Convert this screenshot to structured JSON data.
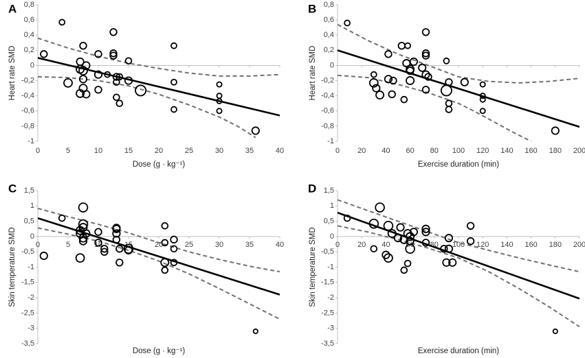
{
  "chart_data": [
    {
      "type": "scatter",
      "label": "A",
      "xlabel": "Dose (g · kg⁻¹)",
      "ylabel": "Heart rate SMD",
      "xlim": [
        0,
        40
      ],
      "xticks": [
        0,
        5,
        10,
        15,
        20,
        25,
        30,
        35,
        40
      ],
      "ylim": [
        -1,
        0.8
      ],
      "yticks": [
        -1,
        {
          "value": -0.8,
          "label": "-0,8"
        },
        {
          "value": -0.6,
          "label": "-0,6"
        },
        {
          "value": -0.4,
          "label": "-0,4"
        },
        {
          "value": -0.2,
          "label": "-0,2"
        },
        0,
        {
          "value": 0.2,
          "label": "0,2"
        },
        {
          "value": 0.4,
          "label": "0,4"
        },
        {
          "value": 0.6,
          "label": "0,6"
        },
        {
          "value": 0.8,
          "label": "0,8"
        }
      ],
      "color": "#000000",
      "ci_color": "#707070",
      "x": [
        1,
        4,
        5,
        7,
        7,
        7,
        7.5,
        7.5,
        7.5,
        7.5,
        8,
        8,
        10,
        10,
        10,
        11.5,
        12.5,
        12.5,
        12.5,
        13,
        13,
        13,
        13.5,
        13.5,
        15,
        15,
        17,
        22.5,
        22.5,
        22.5,
        30,
        30,
        30,
        30,
        36
      ],
      "values": [
        0.15,
        0.57,
        -0.23,
        -0.37,
        0.05,
        -0.05,
        -0.07,
        0.26,
        -0.18,
        -0.3,
        -0.38,
        0,
        0.15,
        -0.12,
        -0.32,
        -0.12,
        0.44,
        0.16,
        0.13,
        -0.15,
        -0.22,
        -0.42,
        -0.5,
        -0.15,
        0.06,
        -0.2,
        -0.33,
        0.26,
        -0.22,
        -0.58,
        -0.25,
        -0.4,
        -0.47,
        -0.6,
        -0.86
      ],
      "sizes": [
        1.2,
        1,
        1.5,
        1.4,
        1.3,
        1.4,
        1.5,
        1.2,
        1.3,
        1.4,
        1.3,
        1.3,
        1.2,
        1.3,
        1.2,
        1,
        1.2,
        1.2,
        1.2,
        1.2,
        1.1,
        1.1,
        1.1,
        1.1,
        1.1,
        1.3,
        1.9,
        1,
        1,
        1,
        0.9,
        0.9,
        0.9,
        0.9,
        1.3
      ],
      "fit": {
        "x": [
          0,
          40
        ],
        "y": [
          0.1,
          -0.66
        ]
      },
      "ci_upper": {
        "x": [
          0,
          5,
          10,
          15,
          20,
          25,
          30,
          35,
          40
        ],
        "y": [
          0.36,
          0.23,
          0.12,
          0.03,
          -0.04,
          -0.1,
          -0.14,
          -0.14,
          -0.12
        ]
      },
      "ci_lower": {
        "x": [
          0,
          5,
          10,
          15,
          20,
          25,
          30,
          33,
          36
        ],
        "y": [
          -0.15,
          -0.16,
          -0.2,
          -0.27,
          -0.38,
          -0.52,
          -0.68,
          -0.8,
          -0.95
        ]
      }
    },
    {
      "type": "scatter",
      "label": "B",
      "xlabel": "Exercise duration (min)",
      "ylabel": "Heart rate SMD",
      "xlim": [
        0,
        200
      ],
      "xticks": [
        0,
        20,
        40,
        60,
        80,
        100,
        120,
        140,
        160,
        180,
        200
      ],
      "ylim": [
        -1,
        0.8
      ],
      "yticks": [
        -1,
        {
          "value": -0.8,
          "label": "-0,8"
        },
        {
          "value": -0.6,
          "label": "-0,6"
        },
        {
          "value": -0.4,
          "label": "-0,4"
        },
        {
          "value": -0.2,
          "label": "-0,2"
        },
        0,
        {
          "value": 0.2,
          "label": "0,2"
        },
        {
          "value": 0.4,
          "label": "0,4"
        },
        {
          "value": 0.6,
          "label": "0,6"
        },
        {
          "value": 0.8,
          "label": "0,8"
        }
      ],
      "color": "#000000",
      "ci_color": "#707070",
      "x": [
        8,
        30,
        30,
        32,
        35,
        42,
        42,
        46,
        45,
        53,
        55,
        57,
        58,
        60,
        60,
        60,
        63,
        70,
        73,
        73,
        73,
        73,
        73,
        75,
        90,
        90,
        92,
        92,
        92,
        105,
        120,
        120,
        120,
        120,
        180
      ],
      "values": [
        0.56,
        -0.12,
        -0.23,
        -0.3,
        -0.39,
        0.15,
        -0.18,
        -0.2,
        -0.38,
        0.26,
        -0.45,
        0.03,
        0.26,
        -0.05,
        -0.07,
        -0.2,
        0.05,
        -0.03,
        0.44,
        0.16,
        0.13,
        -0.12,
        -0.32,
        -0.15,
        0.06,
        -0.33,
        -0.22,
        -0.5,
        -0.58,
        -0.22,
        -0.25,
        -0.4,
        -0.45,
        -0.6,
        -0.86
      ],
      "sizes": [
        1,
        1,
        1.5,
        1.3,
        1.4,
        1.2,
        1.3,
        1.2,
        1.2,
        1.2,
        1.1,
        1.3,
        1,
        1.4,
        1.3,
        1.4,
        1.3,
        1.3,
        1.2,
        1.2,
        1.2,
        1.3,
        1.2,
        1.2,
        1,
        1.9,
        1.2,
        1.1,
        1.1,
        1.3,
        0.9,
        0.9,
        0.9,
        0.9,
        1.3
      ],
      "fit": {
        "x": [
          0,
          200
        ],
        "y": [
          0.2,
          -0.81
        ]
      },
      "ci_upper": {
        "x": [
          0,
          25,
          50,
          75,
          100,
          125,
          150,
          175,
          200
        ],
        "y": [
          0.54,
          0.33,
          0.15,
          0.0,
          -0.15,
          -0.21,
          -0.23,
          -0.21,
          -0.17
        ]
      },
      "ci_lower": {
        "x": [
          0,
          25,
          50,
          75,
          100,
          115,
          130,
          145,
          160
        ],
        "y": [
          -0.13,
          -0.16,
          -0.25,
          -0.36,
          -0.5,
          -0.62,
          -0.75,
          -0.88,
          -1.0
        ]
      }
    },
    {
      "type": "scatter",
      "label": "C",
      "xlabel": "Dose (g · kg⁻¹)",
      "ylabel": "Skin temperature SMD",
      "xlim": [
        0,
        40
      ],
      "xticks": [
        0,
        5,
        10,
        15,
        20,
        25,
        30,
        35,
        40
      ],
      "ylim": [
        -3.5,
        1.5
      ],
      "yticks": [
        {
          "value": -3.5,
          "label": "-3,5"
        },
        -3,
        {
          "value": -2.5,
          "label": "-2,5"
        },
        -2,
        {
          "value": -1.5,
          "label": "-1,5"
        },
        -1,
        {
          "value": -0.5,
          "label": "-0,5"
        },
        0,
        {
          "value": 0.5,
          "label": "0,5"
        },
        1,
        {
          "value": 1.5,
          "label": "1,5"
        }
      ],
      "color": "#000000",
      "ci_color": "#707070",
      "x": [
        1,
        4,
        7,
        7,
        7,
        7.5,
        7.5,
        7.5,
        7.5,
        7.5,
        8,
        10,
        10,
        11,
        11,
        13,
        13,
        13,
        13,
        13.5,
        13.5,
        15,
        15,
        21,
        21,
        21,
        21,
        22.5,
        22.5,
        22.5,
        36
      ],
      "values": [
        -0.63,
        0.6,
        -0.7,
        0.2,
        0.1,
        0.95,
        0.4,
        0.3,
        -0.05,
        -0.15,
        0.1,
        0.15,
        -0.2,
        -0.4,
        -0.5,
        0.28,
        0.25,
        0.1,
        -0.1,
        -0.4,
        -0.85,
        -0.4,
        -0.45,
        0.35,
        -0.2,
        -0.85,
        -1.1,
        -0.1,
        -0.4,
        -0.85,
        -3.1
      ],
      "sizes": [
        1.3,
        1.1,
        1.5,
        1.4,
        1.4,
        1.6,
        1.6,
        1.4,
        1.4,
        1.3,
        1.3,
        1.2,
        1.2,
        1.2,
        1.2,
        1.3,
        1.3,
        1.3,
        1.2,
        1.2,
        1.2,
        1.6,
        1.3,
        1.1,
        1.1,
        1.4,
        1.1,
        1.2,
        1.1,
        1.1,
        0.8
      ],
      "fit": {
        "x": [
          0,
          40
        ],
        "y": [
          0.6,
          -1.9
        ]
      },
      "ci_upper": {
        "x": [
          0,
          5,
          10,
          15,
          20,
          25,
          30,
          35,
          40
        ],
        "y": [
          0.92,
          0.65,
          0.4,
          0.12,
          -0.2,
          -0.5,
          -0.75,
          -0.97,
          -1.15
        ]
      },
      "ci_lower": {
        "x": [
          0,
          5,
          10,
          15,
          20,
          25,
          30,
          35,
          40
        ],
        "y": [
          0.28,
          0.08,
          -0.15,
          -0.45,
          -0.8,
          -1.22,
          -1.7,
          -2.2,
          -2.7
        ]
      }
    },
    {
      "type": "scatter",
      "label": "D",
      "xlabel": "Exercise duration (min)",
      "ylabel": "Skin temperature SMD",
      "xlim": [
        0,
        200
      ],
      "xticks": [
        0,
        20,
        40,
        60,
        80,
        100,
        120,
        140,
        160,
        180,
        200
      ],
      "ylim": [
        -3.5,
        1.5
      ],
      "yticks": [
        {
          "value": -3.5,
          "label": "-3,5"
        },
        -3,
        {
          "value": -2.5,
          "label": "-2,5"
        },
        -2,
        {
          "value": -1.5,
          "label": "-1,5"
        },
        -1,
        {
          "value": -0.5,
          "label": "-0,5"
        },
        0,
        {
          "value": 0.5,
          "label": "0,5"
        },
        1,
        {
          "value": 1.5,
          "label": "1,5"
        }
      ],
      "color": "#000000",
      "ci_color": "#707070",
      "x": [
        8,
        30,
        30,
        35,
        40,
        42,
        42,
        45,
        50,
        52,
        55,
        55,
        58,
        58,
        60,
        60,
        60,
        63,
        73,
        73,
        73,
        88,
        90,
        92,
        92,
        95,
        110,
        110,
        180
      ],
      "values": [
        0.6,
        -0.4,
        0.42,
        0.95,
        -0.6,
        -0.7,
        0.35,
        0.1,
        -0.05,
        0.3,
        -0.1,
        -1.1,
        -0.88,
        0.1,
        0.0,
        -0.4,
        -0.15,
        0.15,
        0.25,
        0.15,
        -0.2,
        -0.4,
        -0.85,
        -0.05,
        -0.4,
        -0.85,
        0.35,
        -0.15,
        -3.1
      ],
      "sizes": [
        1.1,
        1.1,
        1.6,
        1.6,
        1.3,
        1.5,
        1.6,
        1.4,
        1.3,
        1.3,
        1.4,
        1.1,
        1.1,
        1.4,
        1.4,
        1.6,
        1.3,
        1.3,
        1.3,
        1.3,
        1.2,
        1.2,
        1.3,
        1.3,
        1.3,
        1.3,
        1.2,
        1.2,
        0.8
      ],
      "fit": {
        "x": [
          0,
          200
        ],
        "y": [
          0.78,
          -2.03
        ]
      },
      "ci_upper": {
        "x": [
          0,
          25,
          50,
          75,
          100,
          125,
          150,
          175,
          200
        ],
        "y": [
          1.2,
          0.85,
          0.5,
          0.15,
          -0.2,
          -0.45,
          -0.7,
          -0.93,
          -1.15
        ]
      },
      "ci_lower": {
        "x": [
          0,
          25,
          50,
          75,
          100,
          125,
          150,
          175,
          200
        ],
        "y": [
          0.35,
          0.15,
          -0.1,
          -0.38,
          -0.7,
          -1.15,
          -1.7,
          -2.3,
          -2.95
        ]
      }
    }
  ]
}
